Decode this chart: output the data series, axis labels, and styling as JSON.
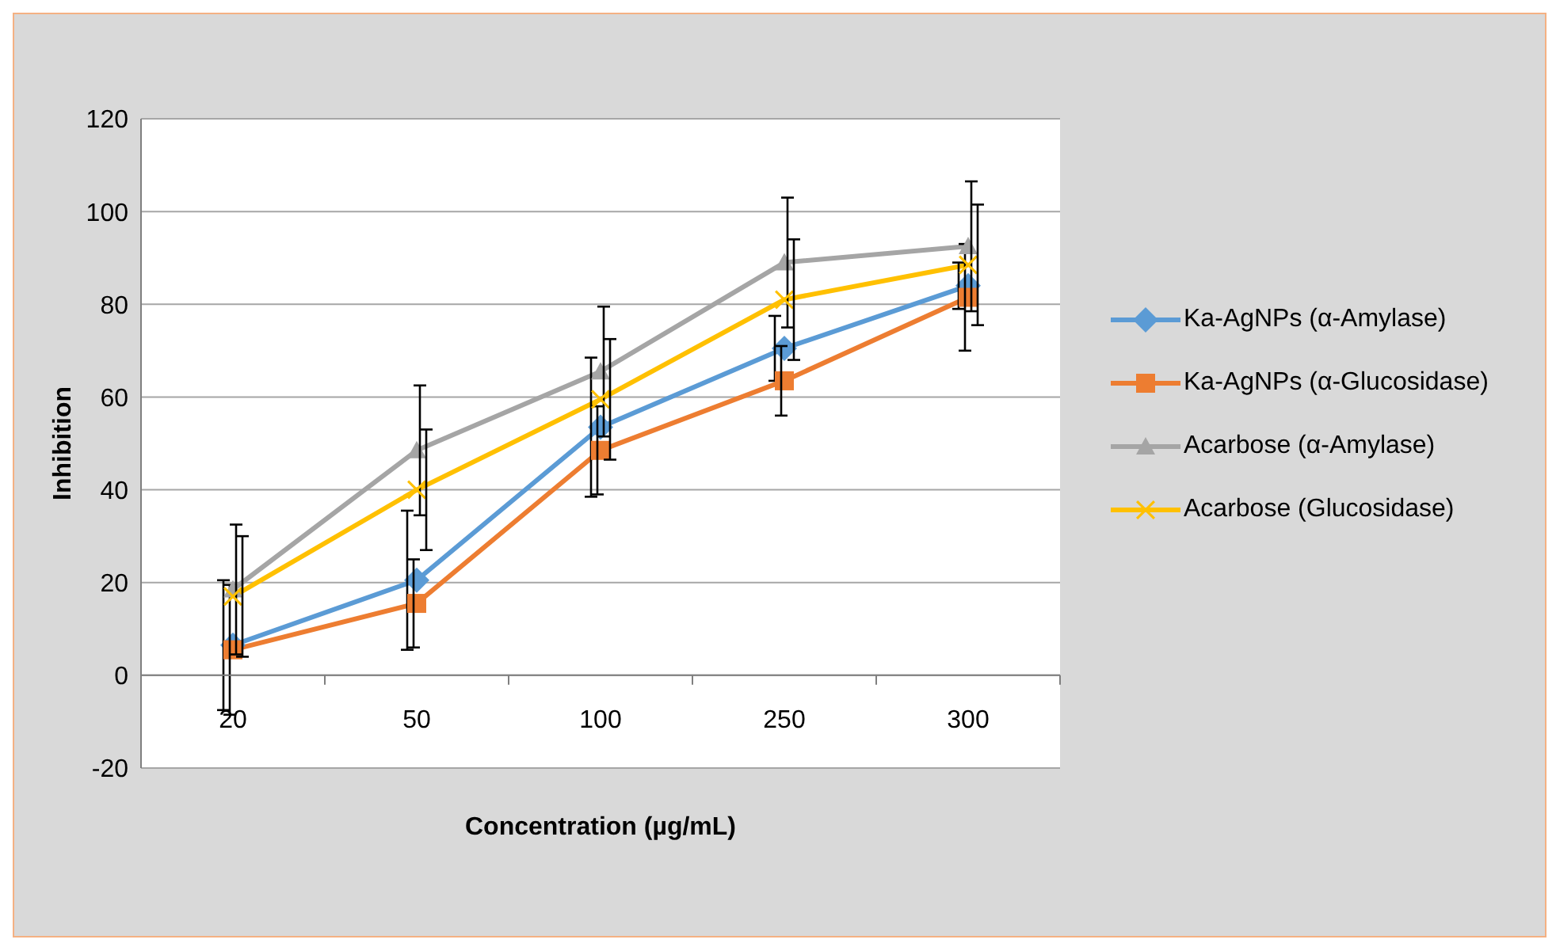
{
  "chart_data": {
    "type": "line",
    "xlabel": "Concentration (µg/mL)",
    "ylabel": "Inhibition",
    "categories": [
      "20",
      "50",
      "100",
      "250",
      "300"
    ],
    "ylim": [
      -20,
      120
    ],
    "yticks": [
      -20,
      0,
      20,
      40,
      60,
      80,
      100,
      120
    ],
    "grid": "y",
    "legend": "right",
    "line_style": "solid",
    "series": [
      {
        "name": "Ka-AgNPs (α-Amylase)",
        "color": "#5b9bd5",
        "marker": "diamond",
        "values": [
          6.5,
          20.5,
          53.5,
          70.5,
          84
        ],
        "errors": [
          14,
          15,
          15,
          7,
          5
        ]
      },
      {
        "name": "Ka-AgNPs (α-Glucosidase)",
        "color": "#ed7d31",
        "marker": "square",
        "values": [
          5.5,
          15.5,
          48.5,
          63.5,
          81.5
        ],
        "errors": [
          14,
          9.5,
          9.5,
          7.5,
          11.5
        ]
      },
      {
        "name": "Acarbose (α-Amylase)",
        "color": "#a5a5a5",
        "marker": "triangle",
        "values": [
          18.5,
          48.5,
          65.5,
          89,
          92.5
        ],
        "errors": [
          14,
          14,
          14,
          14,
          14
        ]
      },
      {
        "name": "Acarbose (Glucosidase)",
        "color": "#ffc000",
        "marker": "cross",
        "values": [
          17,
          40,
          59.5,
          81,
          88.5
        ],
        "errors": [
          13,
          13,
          13,
          13,
          13
        ]
      }
    ]
  }
}
